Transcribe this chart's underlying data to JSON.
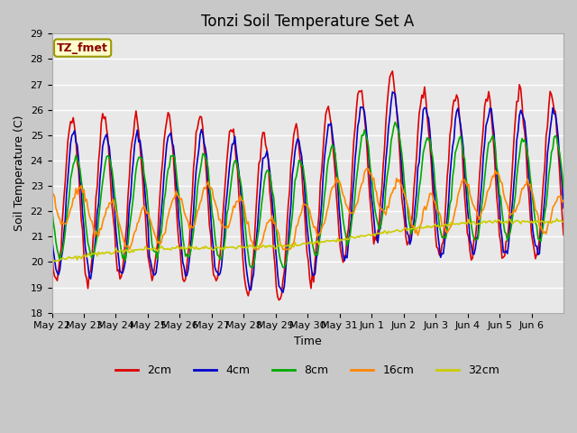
{
  "title": "Tonzi Soil Temperature Set A",
  "xlabel": "Time",
  "ylabel": "Soil Temperature (C)",
  "ylim": [
    18.0,
    29.0
  ],
  "yticks": [
    18.0,
    19.0,
    20.0,
    21.0,
    22.0,
    23.0,
    24.0,
    25.0,
    26.0,
    27.0,
    28.0,
    29.0
  ],
  "x_labels": [
    "May 22",
    "May 23",
    "May 24",
    "May 25",
    "May 26",
    "May 27",
    "May 28",
    "May 29",
    "May 30",
    "May 31",
    "Jun 1",
    "Jun 2",
    "Jun 3",
    "Jun 4",
    "Jun 5",
    "Jun 6"
  ],
  "annotation_text": "TZ_fmet",
  "annotation_color": "#8b0000",
  "annotation_bg": "#ffffcc",
  "annotation_border": "#999900",
  "series_2cm_color": "#dd0000",
  "series_4cm_color": "#0000cc",
  "series_8cm_color": "#00aa00",
  "series_16cm_color": "#ff8800",
  "series_32cm_color": "#cccc00",
  "linewidth": 1.2,
  "legend_labels": [
    "2cm",
    "4cm",
    "8cm",
    "16cm",
    "32cm"
  ],
  "legend_colors": [
    "#dd0000",
    "#0000cc",
    "#00aa00",
    "#ff8800",
    "#cccc00"
  ],
  "plot_bg": "#e8e8e8",
  "outer_bg": "#c8c8c8",
  "grid_color": "#ffffff",
  "title_fontsize": 12,
  "axis_fontsize": 9,
  "tick_fontsize": 8
}
